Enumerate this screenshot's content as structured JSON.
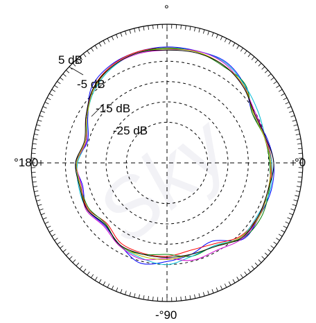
{
  "chart_data": {
    "type": "polar-line",
    "unit": "dB",
    "r_range_db": [
      -45,
      15
    ],
    "rings_db": [
      5,
      -5,
      -15,
      -25
    ],
    "ring_labels": [
      "5 dB",
      "-5 dB",
      "-15 dB",
      "-25 dB"
    ],
    "angle_labels": {
      "top": "°",
      "right": "°0",
      "bottom": "-°90",
      "left": "°180"
    },
    "watermark_text": "Sky",
    "angles_deg": [
      0,
      15,
      30,
      45,
      60,
      75,
      90,
      105,
      120,
      135,
      150,
      165,
      180,
      195,
      210,
      225,
      240,
      255,
      270,
      285,
      300,
      315,
      330,
      345
    ],
    "series": [
      {
        "color": "#0000ff",
        "values_db": [
          7.5,
          5.5,
          3.5,
          9.0,
          12.5,
          12.0,
          12.0,
          11.5,
          10.5,
          7.5,
          0.0,
          -4.5,
          0.0,
          -2.0,
          0.5,
          -1.5,
          1.5,
          6.0,
          3.5,
          1.5,
          -0.5,
          8.0,
          7.5,
          8.0
        ]
      },
      {
        "color": "#ff0000",
        "values_db": [
          6.5,
          5.0,
          4.5,
          8.5,
          10.5,
          11.5,
          11.5,
          11.5,
          10.0,
          6.5,
          0.5,
          -3.5,
          -0.5,
          -1.0,
          0.0,
          -3.0,
          0.5,
          1.0,
          1.0,
          -0.5,
          1.0,
          6.0,
          7.0,
          6.5
        ]
      },
      {
        "color": "#008000",
        "values_db": [
          5.5,
          4.5,
          3.5,
          9.5,
          10.0,
          11.5,
          11.5,
          11.0,
          9.5,
          6.5,
          0.5,
          -4.0,
          -0.5,
          -1.0,
          -0.5,
          -2.5,
          2.0,
          1.5,
          0.0,
          2.5,
          2.0,
          7.5,
          8.5,
          7.0
        ]
      },
      {
        "color": "#00bcd4",
        "values_db": [
          6.5,
          5.0,
          6.5,
          9.0,
          12.0,
          12.0,
          11.0,
          11.0,
          9.0,
          5.5,
          0.5,
          -4.0,
          -1.0,
          0.0,
          0.5,
          -2.0,
          1.5,
          3.5,
          5.0,
          2.5,
          2.0,
          6.5,
          6.5,
          7.5
        ]
      },
      {
        "color": "#cc00cc",
        "values_db": [
          6.0,
          5.0,
          5.0,
          8.0,
          11.5,
          12.0,
          10.5,
          10.5,
          9.5,
          6.0,
          1.0,
          -4.0,
          -0.5,
          -1.5,
          1.0,
          -1.0,
          2.0,
          4.0,
          2.0,
          4.5,
          4.5,
          7.5,
          7.5,
          6.5
        ]
      },
      {
        "color": "#b8b800",
        "values_db": [
          6.0,
          4.5,
          4.0,
          8.5,
          10.5,
          11.5,
          11.0,
          11.0,
          9.5,
          6.0,
          0.5,
          -3.5,
          -0.5,
          -1.0,
          0.5,
          -2.0,
          1.5,
          2.5,
          2.5,
          1.5,
          2.5,
          6.5,
          7.5,
          6.5
        ]
      },
      {
        "color": "#000000",
        "values_db": [
          7.5,
          5.0,
          4.5,
          8.0,
          10.5,
          11.0,
          10.5,
          11.0,
          9.5,
          6.5,
          1.0,
          -3.0,
          0.0,
          -0.5,
          0.5,
          -2.0,
          1.5,
          1.5,
          1.5,
          1.5,
          2.5,
          7.0,
          7.0,
          6.5
        ]
      }
    ]
  }
}
